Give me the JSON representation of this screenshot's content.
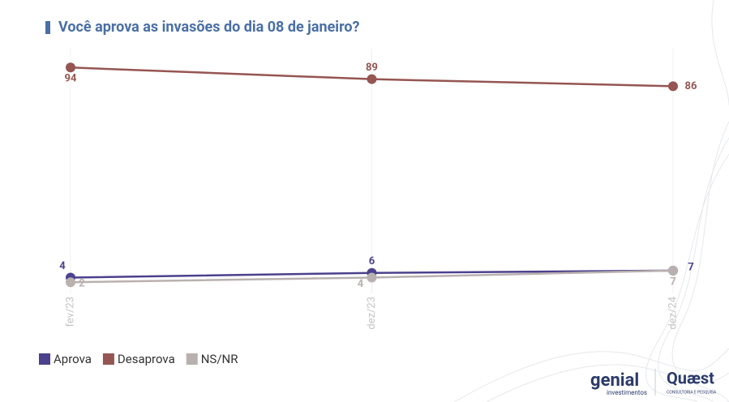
{
  "chart_data": {
    "type": "line",
    "title": "Você aprova as invasões do dia 08 de janeiro?",
    "categories": [
      "fev/23",
      "dez/23",
      "dez/24"
    ],
    "series": [
      {
        "name": "Aprova",
        "color": "#4b418c",
        "values": [
          4,
          6,
          7
        ]
      },
      {
        "name": "Desaprova",
        "color": "#955552",
        "values": [
          94,
          89,
          86
        ]
      },
      {
        "name": "NS/NR",
        "color": "#b9b1af",
        "values": [
          2,
          4,
          7
        ]
      }
    ],
    "ylim": [
      0,
      100
    ],
    "grid": true,
    "legend": "bottom-left"
  },
  "branding": {
    "left": "genial",
    "left_sub": "investimentos",
    "right": "Quæst",
    "right_sub": "CONSULTORIA E PESQUISA"
  }
}
